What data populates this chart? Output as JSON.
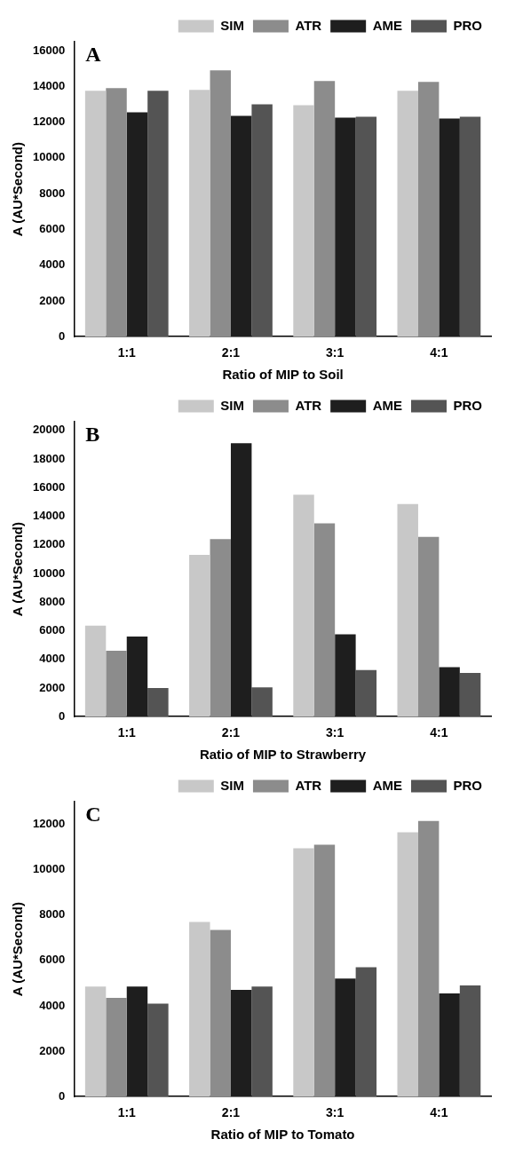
{
  "chart_data": [
    {
      "type": "bar",
      "annotations": [
        "A"
      ],
      "xlabel": "Ratio of MIP to Soil",
      "ylabel": "A (AU*Second)",
      "categories": [
        "1:1",
        "2:1",
        "3:1",
        "4:1"
      ],
      "legend": "top right",
      "grid": false,
      "ylim": [
        0,
        16500
      ],
      "yticks": [
        0,
        2000,
        4000,
        6000,
        8000,
        10000,
        12000,
        14000,
        16000
      ],
      "series": [
        {
          "name": "SIM",
          "color": "#c8c8c8",
          "values": [
            13750,
            13800,
            12950,
            13750
          ]
        },
        {
          "name": "ATR",
          "color": "#8c8c8c",
          "values": [
            13900,
            14900,
            14300,
            14250
          ]
        },
        {
          "name": "AME",
          "color": "#1e1e1e",
          "values": [
            12550,
            12350,
            12250,
            12200
          ]
        },
        {
          "name": "PRO",
          "color": "#545454",
          "values": [
            13750,
            13000,
            12300,
            12300
          ]
        }
      ]
    },
    {
      "type": "bar",
      "annotations": [
        "B"
      ],
      "xlabel": "Ratio of MIP to Strawberry",
      "ylabel": "A (AU*Second)",
      "categories": [
        "1:1",
        "2:1",
        "3:1",
        "4:1"
      ],
      "legend": "top right",
      "grid": false,
      "ylim": [
        0,
        20600
      ],
      "yticks": [
        0,
        2000,
        4000,
        6000,
        8000,
        10000,
        12000,
        14000,
        16000,
        18000,
        20000
      ],
      "series": [
        {
          "name": "SIM",
          "color": "#c8c8c8",
          "values": [
            6350,
            11300,
            15500,
            14850
          ]
        },
        {
          "name": "ATR",
          "color": "#8c8c8c",
          "values": [
            4600,
            12400,
            13500,
            12550
          ]
        },
        {
          "name": "AME",
          "color": "#1e1e1e",
          "values": [
            5600,
            19100,
            5750,
            3450
          ]
        },
        {
          "name": "PRO",
          "color": "#545454",
          "values": [
            2000,
            2050,
            3250,
            3050
          ]
        }
      ]
    },
    {
      "type": "bar",
      "annotations": [
        "C"
      ],
      "xlabel": "Ratio of MIP to Tomato",
      "ylabel": "A (AU*Second)",
      "categories": [
        "1:1",
        "2:1",
        "3:1",
        "4:1"
      ],
      "legend": "top right",
      "grid": false,
      "ylim": [
        0,
        13000
      ],
      "yticks": [
        0,
        2000,
        4000,
        6000,
        8000,
        10000,
        12000
      ],
      "series": [
        {
          "name": "SIM",
          "color": "#c8c8c8",
          "values": [
            4850,
            7700,
            10950,
            11650
          ]
        },
        {
          "name": "ATR",
          "color": "#8c8c8c",
          "values": [
            4350,
            7350,
            11100,
            12150
          ]
        },
        {
          "name": "AME",
          "color": "#1e1e1e",
          "values": [
            4850,
            4700,
            5200,
            4550
          ]
        },
        {
          "name": "PRO",
          "color": "#545454",
          "values": [
            4100,
            4850,
            5700,
            4900
          ]
        }
      ]
    }
  ]
}
